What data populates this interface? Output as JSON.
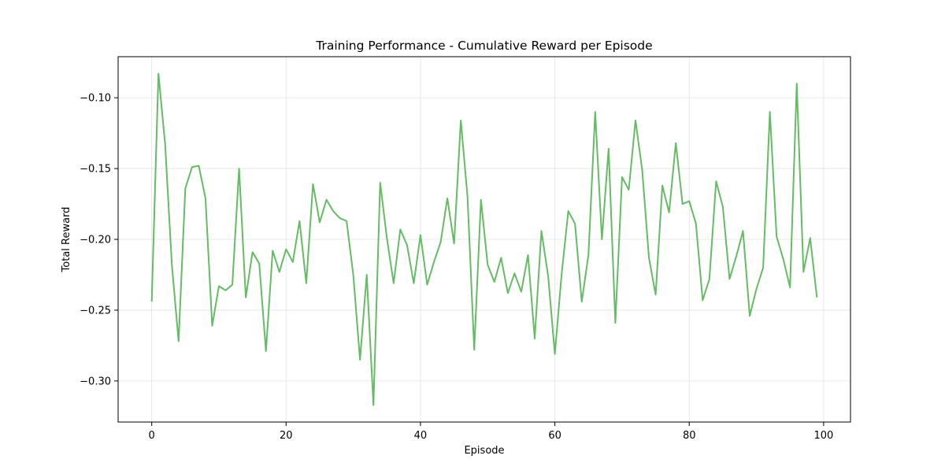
{
  "chart_data": {
    "type": "line",
    "title": "Training Performance - Cumulative Reward per Episode",
    "xlabel": "Episode",
    "ylabel": "Total Reward",
    "xlim": [
      -5,
      104
    ],
    "ylim": [
      -0.329,
      -0.071
    ],
    "xticks": [
      0,
      20,
      40,
      60,
      80,
      100
    ],
    "yticks": [
      -0.3,
      -0.25,
      -0.2,
      -0.15,
      -0.1
    ],
    "xtick_labels": [
      "0",
      "20",
      "40",
      "60",
      "80",
      "100"
    ],
    "ytick_labels": [
      "−0.30",
      "−0.25",
      "−0.20",
      "−0.15",
      "−0.10"
    ],
    "grid": true,
    "series": [
      {
        "color": "#5cb85c",
        "x": [
          0,
          1,
          2,
          3,
          4,
          5,
          6,
          7,
          8,
          9,
          10,
          11,
          12,
          13,
          14,
          15,
          16,
          17,
          18,
          19,
          20,
          21,
          22,
          23,
          24,
          25,
          26,
          27,
          28,
          29,
          30,
          31,
          32,
          33,
          34,
          35,
          36,
          37,
          38,
          39,
          40,
          41,
          42,
          43,
          44,
          45,
          46,
          47,
          48,
          49,
          50,
          51,
          52,
          53,
          54,
          55,
          56,
          57,
          58,
          59,
          60,
          61,
          62,
          63,
          64,
          65,
          66,
          67,
          68,
          69,
          70,
          71,
          72,
          73,
          74,
          75,
          76,
          77,
          78,
          79,
          80,
          81,
          82,
          83,
          84,
          85,
          86,
          87,
          88,
          89,
          90,
          91,
          92,
          93,
          94,
          95,
          96,
          97,
          98,
          99
        ],
        "values": [
          -0.244,
          -0.083,
          -0.133,
          -0.218,
          -0.272,
          -0.164,
          -0.149,
          -0.148,
          -0.171,
          -0.261,
          -0.233,
          -0.236,
          -0.232,
          -0.15,
          -0.241,
          -0.209,
          -0.217,
          -0.279,
          -0.208,
          -0.223,
          -0.207,
          -0.216,
          -0.187,
          -0.231,
          -0.161,
          -0.188,
          -0.172,
          -0.18,
          -0.185,
          -0.187,
          -0.225,
          -0.285,
          -0.225,
          -0.317,
          -0.16,
          -0.199,
          -0.231,
          -0.193,
          -0.204,
          -0.231,
          -0.197,
          -0.232,
          -0.216,
          -0.202,
          -0.171,
          -0.203,
          -0.116,
          -0.17,
          -0.278,
          -0.172,
          -0.218,
          -0.23,
          -0.213,
          -0.238,
          -0.224,
          -0.237,
          -0.211,
          -0.27,
          -0.194,
          -0.226,
          -0.281,
          -0.225,
          -0.18,
          -0.189,
          -0.244,
          -0.211,
          -0.11,
          -0.2,
          -0.136,
          -0.259,
          -0.156,
          -0.165,
          -0.116,
          -0.151,
          -0.213,
          -0.239,
          -0.162,
          -0.181,
          -0.132,
          -0.175,
          -0.173,
          -0.189,
          -0.243,
          -0.228,
          -0.159,
          -0.177,
          -0.228,
          -0.212,
          -0.194,
          -0.254,
          -0.235,
          -0.22,
          -0.11,
          -0.198,
          -0.214,
          -0.234,
          -0.09,
          -0.223,
          -0.199,
          -0.241
        ]
      }
    ]
  }
}
